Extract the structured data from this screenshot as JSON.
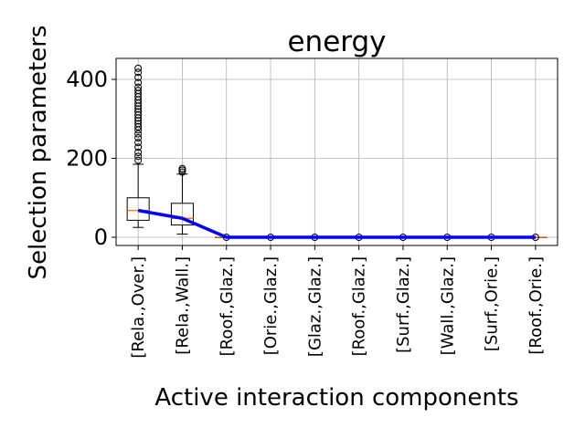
{
  "chart_data": {
    "type": "box",
    "title": "energy",
    "xlabel": "Active interaction components",
    "ylabel": "Selection parameters",
    "ylim": [
      -20,
      450
    ],
    "yticks": [
      0,
      200,
      400
    ],
    "grid": true,
    "categories": [
      "[Rela.,Over.]",
      "[Rela.,Wall.]",
      "[Roof.,Glaz.]",
      "[Orie.,Glaz.]",
      "[Glaz.,Glaz.]",
      "[Roof.,Glaz.]",
      "[Surf.,Glaz.]",
      "[Wall.,Glaz.]",
      "[Surf.,Orie.]",
      "[Roof.,Orie.]"
    ],
    "boxes": [
      {
        "whisker_low": 25,
        "q1": 43,
        "median": 68,
        "q3": 100,
        "whisker_high": 185,
        "outliers": [
          195,
          205,
          215,
          228,
          240,
          252,
          262,
          272,
          280,
          288,
          295,
          302,
          310,
          318,
          325,
          332,
          340,
          348,
          356,
          364,
          372,
          380,
          392,
          405,
          418,
          428
        ]
      },
      {
        "whisker_low": 8,
        "q1": 31,
        "median": 48,
        "q3": 86,
        "whisker_high": 160,
        "outliers": [
          165,
          170,
          174
        ]
      },
      {
        "whisker_low": 0,
        "q1": 0,
        "median": 0,
        "q3": 0,
        "whisker_high": 0,
        "outliers": [
          0
        ]
      },
      {
        "whisker_low": 0,
        "q1": 0,
        "median": 0,
        "q3": 0,
        "whisker_high": 0,
        "outliers": [
          0
        ]
      },
      {
        "whisker_low": 0,
        "q1": 0,
        "median": 0,
        "q3": 0,
        "whisker_high": 0,
        "outliers": [
          0
        ]
      },
      {
        "whisker_low": 0,
        "q1": 0,
        "median": 0,
        "q3": 0,
        "whisker_high": 0,
        "outliers": [
          0
        ]
      },
      {
        "whisker_low": 0,
        "q1": 0,
        "median": 0,
        "q3": 0,
        "whisker_high": 0,
        "outliers": [
          0
        ]
      },
      {
        "whisker_low": 0,
        "q1": 0,
        "median": 0,
        "q3": 0,
        "whisker_high": 0,
        "outliers": [
          0
        ]
      },
      {
        "whisker_low": 0,
        "q1": 0,
        "median": 0,
        "q3": 0,
        "whisker_high": 0,
        "outliers": [
          0
        ]
      },
      {
        "whisker_low": 0,
        "q1": 0,
        "median": 0,
        "q3": 0,
        "whisker_high": 0,
        "outliers": [
          0
        ]
      }
    ],
    "mean_line": {
      "color": "#0000ff",
      "values": [
        68,
        48,
        0,
        0,
        0,
        0,
        0,
        0,
        0,
        0
      ]
    },
    "colors": {
      "median": "#ff7f0e",
      "box": "#000000",
      "grid": "#b0b0b0"
    }
  }
}
